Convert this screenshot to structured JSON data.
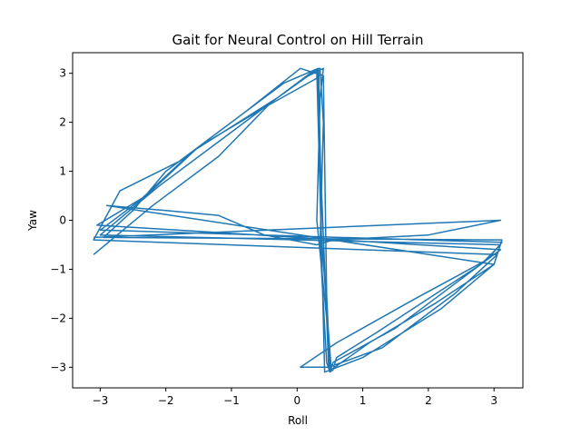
{
  "chart_data": {
    "type": "line",
    "title": "Gait for Neural Control on Hill Terrain",
    "xlabel": "Roll",
    "ylabel": "Yaw",
    "xlim": [
      -3.42,
      3.44
    ],
    "ylim": [
      -3.42,
      3.42
    ],
    "xticks": [
      "−3",
      "−2",
      "−1",
      "0",
      "1",
      "2",
      "3"
    ],
    "xtick_values": [
      -3,
      -2,
      -1,
      0,
      1,
      2,
      3
    ],
    "yticks": [
      "−3",
      "−2",
      "−1",
      "0",
      "1",
      "2",
      "3"
    ],
    "ytick_values": [
      -3,
      -2,
      -1,
      0,
      1,
      2,
      3
    ],
    "grid": false,
    "series": [
      {
        "color": "#1f77b4",
        "x": [
          -3.1,
          -2.2,
          -1.2,
          -0.4,
          0.1,
          0.4,
          0.35,
          0.3,
          0.45,
          0.5,
          0.55,
          0.6,
          1.2,
          2.0,
          2.8,
          3.1,
          -3.0,
          -2.1,
          -1.0,
          0.2,
          0.35,
          0.4,
          0.35,
          0.45,
          0.5,
          0.55,
          1.5,
          2.5,
          3.1,
          -3.05,
          -2.3,
          -1.5,
          -0.5,
          0.3,
          0.3,
          0.38,
          0.42,
          1.0,
          2.2,
          3.0,
          3.12,
          -2.95,
          -2.5,
          -2.0,
          -1.1,
          -0.2,
          0.32,
          0.36,
          0.48,
          1.3,
          2.4,
          3.05,
          -3.1,
          -2.7,
          -1.8,
          -0.8,
          0.05,
          0.4,
          0.45,
          0.5,
          0.05,
          0.6,
          1.8,
          2.9,
          3.12,
          -3.0,
          -2.4,
          -1.6,
          -0.3,
          0.33,
          0.37,
          0.52,
          1.1,
          2.1,
          3.0,
          -2.9,
          -2.0,
          -1.2,
          -0.5,
          0.3,
          0.55,
          2.0,
          3.1,
          -3.1
        ],
        "y": [
          -0.7,
          0.3,
          1.3,
          2.4,
          2.9,
          3.1,
          2.5,
          0.0,
          -2.0,
          -3.1,
          -3.05,
          -2.8,
          -2.3,
          -1.6,
          -0.9,
          -0.5,
          -0.3,
          0.7,
          1.8,
          3.0,
          3.1,
          2.0,
          -0.5,
          -2.9,
          -3.1,
          -2.9,
          -2.2,
          -1.2,
          -0.6,
          -0.1,
          0.5,
          1.5,
          2.3,
          2.9,
          3.05,
          -1.0,
          -3.1,
          -2.8,
          -1.8,
          -0.9,
          -0.4,
          -0.35,
          0.2,
          1.0,
          1.9,
          2.8,
          3.1,
          1.0,
          -3.0,
          -2.6,
          -1.5,
          -0.7,
          -0.4,
          0.6,
          1.2,
          2.2,
          3.1,
          2.95,
          -1.5,
          -3.0,
          -3.0,
          -2.5,
          -1.6,
          -0.8,
          -0.45,
          -0.2,
          0.4,
          1.4,
          2.5,
          3.1,
          -0.3,
          -3.05,
          -2.5,
          -1.7,
          -0.9,
          0.3,
          0.2,
          0.1,
          -0.3,
          -0.5,
          -0.4,
          -0.3,
          0.0,
          -0.35
        ]
      }
    ]
  }
}
